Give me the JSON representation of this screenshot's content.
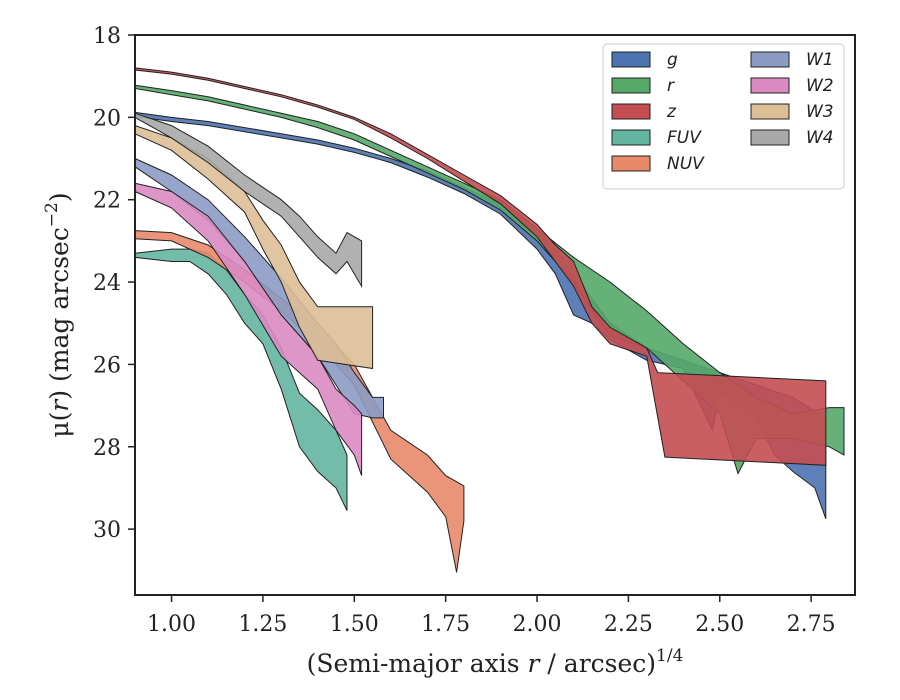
{
  "chart_data": {
    "type": "area",
    "title": "",
    "xlabel": {
      "prefix": "(Semi-major axis ",
      "var": "r",
      "suffix": " / arcsec)",
      "exp": "1/4"
    },
    "ylabel": {
      "prefix": "μ(",
      "var": "r",
      "suffix": ") (mag arcsec",
      "exp": "−2",
      "close": ")"
    },
    "xlim": [
      0.9,
      2.87
    ],
    "ylim": [
      31.6,
      18
    ],
    "y_inverted": true,
    "grid": false,
    "legend_position": "top-right",
    "legend_columns": 2,
    "xticks": [
      {
        "v": 1.0,
        "label": "1.00"
      },
      {
        "v": 1.25,
        "label": "1.25"
      },
      {
        "v": 1.5,
        "label": "1.50"
      },
      {
        "v": 1.75,
        "label": "1.75"
      },
      {
        "v": 2.0,
        "label": "2.00"
      },
      {
        "v": 2.25,
        "label": "2.25"
      },
      {
        "v": 2.5,
        "label": "2.50"
      },
      {
        "v": 2.75,
        "label": "2.75"
      }
    ],
    "yticks": [
      {
        "v": 18,
        "label": "18"
      },
      {
        "v": 20,
        "label": "20"
      },
      {
        "v": 22,
        "label": "22"
      },
      {
        "v": 24,
        "label": "24"
      },
      {
        "v": 26,
        "label": "26"
      },
      {
        "v": 28,
        "label": "28"
      },
      {
        "v": 30,
        "label": "30"
      }
    ],
    "series": [
      {
        "name": "g",
        "color": "#4C72B0",
        "upper": [
          [
            0.9,
            19.88
          ],
          [
            1.0,
            20.0
          ],
          [
            1.1,
            20.1
          ],
          [
            1.2,
            20.25
          ],
          [
            1.3,
            20.4
          ],
          [
            1.4,
            20.55
          ],
          [
            1.5,
            20.75
          ],
          [
            1.6,
            21.0
          ],
          [
            1.7,
            21.3
          ],
          [
            1.8,
            21.7
          ],
          [
            1.9,
            22.1
          ],
          [
            2.0,
            22.8
          ],
          [
            2.05,
            23.2
          ],
          [
            2.1,
            23.8
          ],
          [
            2.15,
            24.4
          ],
          [
            2.2,
            25.0
          ],
          [
            2.3,
            25.6
          ],
          [
            2.4,
            25.9
          ],
          [
            2.5,
            26.2
          ],
          [
            2.6,
            26.5
          ],
          [
            2.7,
            26.8
          ],
          [
            2.79,
            27.3
          ]
        ],
        "lower": [
          [
            0.9,
            19.98
          ],
          [
            1.0,
            20.1
          ],
          [
            1.1,
            20.2
          ],
          [
            1.2,
            20.35
          ],
          [
            1.3,
            20.5
          ],
          [
            1.4,
            20.65
          ],
          [
            1.5,
            20.85
          ],
          [
            1.6,
            21.1
          ],
          [
            1.7,
            21.45
          ],
          [
            1.8,
            21.85
          ],
          [
            1.9,
            22.35
          ],
          [
            2.0,
            23.2
          ],
          [
            2.05,
            23.8
          ],
          [
            2.1,
            24.8
          ],
          [
            2.15,
            25.0
          ],
          [
            2.2,
            25.4
          ],
          [
            2.3,
            25.9
          ],
          [
            2.4,
            26.1
          ],
          [
            2.48,
            27.6
          ],
          [
            2.5,
            26.7
          ],
          [
            2.6,
            27.3
          ],
          [
            2.65,
            28.2
          ],
          [
            2.7,
            28.6
          ],
          [
            2.76,
            29.0
          ],
          [
            2.79,
            29.75
          ]
        ]
      },
      {
        "name": "r",
        "color": "#55A868",
        "upper": [
          [
            0.9,
            19.22
          ],
          [
            1.0,
            19.35
          ],
          [
            1.1,
            19.5
          ],
          [
            1.2,
            19.7
          ],
          [
            1.3,
            19.9
          ],
          [
            1.4,
            20.1
          ],
          [
            1.5,
            20.4
          ],
          [
            1.6,
            20.8
          ],
          [
            1.7,
            21.2
          ],
          [
            1.8,
            21.6
          ],
          [
            1.9,
            22.0
          ],
          [
            2.0,
            22.7
          ],
          [
            2.1,
            23.4
          ],
          [
            2.2,
            24.0
          ],
          [
            2.3,
            24.7
          ],
          [
            2.4,
            25.5
          ],
          [
            2.5,
            26.2
          ],
          [
            2.6,
            26.8
          ],
          [
            2.7,
            27.2
          ],
          [
            2.8,
            27.05
          ],
          [
            2.84,
            27.05
          ]
        ],
        "lower": [
          [
            0.9,
            19.3
          ],
          [
            1.0,
            19.45
          ],
          [
            1.1,
            19.6
          ],
          [
            1.2,
            19.8
          ],
          [
            1.3,
            20.0
          ],
          [
            1.4,
            20.25
          ],
          [
            1.5,
            20.55
          ],
          [
            1.6,
            20.95
          ],
          [
            1.7,
            21.35
          ],
          [
            1.8,
            21.75
          ],
          [
            1.9,
            22.25
          ],
          [
            2.0,
            23.0
          ],
          [
            2.1,
            24.0
          ],
          [
            2.2,
            25.3
          ],
          [
            2.3,
            25.6
          ],
          [
            2.4,
            26.4
          ],
          [
            2.5,
            27.2
          ],
          [
            2.55,
            28.65
          ],
          [
            2.6,
            27.8
          ],
          [
            2.7,
            27.8
          ],
          [
            2.8,
            28.0
          ],
          [
            2.84,
            28.2
          ]
        ]
      },
      {
        "name": "z",
        "color": "#C44E52",
        "upper": [
          [
            0.9,
            18.8
          ],
          [
            1.0,
            18.9
          ],
          [
            1.1,
            19.05
          ],
          [
            1.2,
            19.25
          ],
          [
            1.3,
            19.45
          ],
          [
            1.4,
            19.7
          ],
          [
            1.5,
            20.0
          ],
          [
            1.6,
            20.4
          ],
          [
            1.7,
            20.9
          ],
          [
            1.8,
            21.4
          ],
          [
            1.9,
            21.9
          ],
          [
            2.0,
            22.6
          ],
          [
            2.05,
            23.1
          ],
          [
            2.1,
            23.5
          ],
          [
            2.15,
            24.6
          ],
          [
            2.2,
            25.1
          ],
          [
            2.3,
            25.6
          ],
          [
            2.33,
            26.2
          ],
          [
            2.79,
            26.4
          ]
        ],
        "lower": [
          [
            0.9,
            18.85
          ],
          [
            1.0,
            18.95
          ],
          [
            1.1,
            19.1
          ],
          [
            1.2,
            19.3
          ],
          [
            1.3,
            19.5
          ],
          [
            1.4,
            19.75
          ],
          [
            1.5,
            20.05
          ],
          [
            1.6,
            20.5
          ],
          [
            1.7,
            21.0
          ],
          [
            1.8,
            21.55
          ],
          [
            1.9,
            22.1
          ],
          [
            2.0,
            22.9
          ],
          [
            2.05,
            23.5
          ],
          [
            2.1,
            24.1
          ],
          [
            2.15,
            25.0
          ],
          [
            2.2,
            25.5
          ],
          [
            2.3,
            25.8
          ],
          [
            2.35,
            28.25
          ],
          [
            2.79,
            28.45
          ]
        ]
      },
      {
        "name": "FUV",
        "color": "#64B5A0",
        "upper": [
          [
            0.9,
            23.3
          ],
          [
            1.0,
            23.2
          ],
          [
            1.05,
            23.2
          ],
          [
            1.1,
            23.3
          ],
          [
            1.15,
            23.7
          ],
          [
            1.2,
            24.3
          ],
          [
            1.25,
            24.8
          ],
          [
            1.3,
            25.6
          ],
          [
            1.35,
            26.7
          ],
          [
            1.4,
            27.1
          ],
          [
            1.45,
            27.6
          ],
          [
            1.48,
            28.2
          ]
        ],
        "lower": [
          [
            0.9,
            23.4
          ],
          [
            1.0,
            23.5
          ],
          [
            1.05,
            23.5
          ],
          [
            1.1,
            23.8
          ],
          [
            1.15,
            24.3
          ],
          [
            1.2,
            25.0
          ],
          [
            1.25,
            25.5
          ],
          [
            1.3,
            26.6
          ],
          [
            1.35,
            28.0
          ],
          [
            1.4,
            28.6
          ],
          [
            1.45,
            29.0
          ],
          [
            1.48,
            29.55
          ]
        ]
      },
      {
        "name": "NUV",
        "color": "#E8896A",
        "upper": [
          [
            0.9,
            22.75
          ],
          [
            1.0,
            22.8
          ],
          [
            1.1,
            23.1
          ],
          [
            1.2,
            23.7
          ],
          [
            1.3,
            24.4
          ],
          [
            1.4,
            25.1
          ],
          [
            1.5,
            26.0
          ],
          [
            1.6,
            27.6
          ],
          [
            1.7,
            28.2
          ],
          [
            1.75,
            28.7
          ],
          [
            1.8,
            28.95
          ]
        ],
        "lower": [
          [
            0.9,
            22.95
          ],
          [
            1.0,
            23.0
          ],
          [
            1.1,
            23.4
          ],
          [
            1.2,
            24.0
          ],
          [
            1.3,
            24.7
          ],
          [
            1.4,
            25.5
          ],
          [
            1.5,
            26.5
          ],
          [
            1.6,
            28.3
          ],
          [
            1.7,
            29.1
          ],
          [
            1.75,
            29.7
          ],
          [
            1.78,
            31.05
          ],
          [
            1.8,
            29.8
          ]
        ]
      },
      {
        "name": "W1",
        "color": "#8C9BC4",
        "upper": [
          [
            0.9,
            21.0
          ],
          [
            1.0,
            21.4
          ],
          [
            1.1,
            22.0
          ],
          [
            1.2,
            22.9
          ],
          [
            1.3,
            23.9
          ],
          [
            1.4,
            25.0
          ],
          [
            1.45,
            25.5
          ],
          [
            1.5,
            26.2
          ],
          [
            1.55,
            26.8
          ],
          [
            1.58,
            26.8
          ]
        ],
        "lower": [
          [
            0.9,
            21.2
          ],
          [
            1.0,
            21.8
          ],
          [
            1.1,
            22.5
          ],
          [
            1.2,
            23.5
          ],
          [
            1.3,
            24.8
          ],
          [
            1.4,
            25.8
          ],
          [
            1.45,
            26.5
          ],
          [
            1.5,
            27.2
          ],
          [
            1.55,
            27.3
          ],
          [
            1.58,
            27.3
          ]
        ]
      },
      {
        "name": "W2",
        "color": "#DA8BC3",
        "upper": [
          [
            0.9,
            21.6
          ],
          [
            1.0,
            21.8
          ],
          [
            1.1,
            22.4
          ],
          [
            1.2,
            23.5
          ],
          [
            1.3,
            24.8
          ],
          [
            1.4,
            25.8
          ],
          [
            1.45,
            26.6
          ],
          [
            1.5,
            27.0
          ],
          [
            1.52,
            27.2
          ]
        ],
        "lower": [
          [
            0.9,
            21.8
          ],
          [
            1.0,
            22.2
          ],
          [
            1.1,
            23.0
          ],
          [
            1.2,
            24.3
          ],
          [
            1.3,
            25.8
          ],
          [
            1.4,
            26.6
          ],
          [
            1.45,
            27.6
          ],
          [
            1.5,
            28.2
          ],
          [
            1.52,
            28.7
          ]
        ]
      },
      {
        "name": "W3",
        "color": "#DDBF96",
        "upper": [
          [
            0.9,
            20.2
          ],
          [
            1.0,
            20.5
          ],
          [
            1.1,
            21.0
          ],
          [
            1.2,
            21.8
          ],
          [
            1.25,
            22.5
          ],
          [
            1.3,
            23.1
          ],
          [
            1.35,
            24.0
          ],
          [
            1.4,
            24.6
          ],
          [
            1.55,
            24.6
          ]
        ],
        "lower": [
          [
            0.9,
            20.4
          ],
          [
            1.0,
            20.8
          ],
          [
            1.1,
            21.5
          ],
          [
            1.2,
            22.3
          ],
          [
            1.25,
            23.2
          ],
          [
            1.3,
            24.0
          ],
          [
            1.35,
            25.1
          ],
          [
            1.4,
            25.9
          ],
          [
            1.55,
            26.1
          ]
        ]
      },
      {
        "name": "W4",
        "color": "#A9A9A9",
        "upper": [
          [
            0.9,
            19.9
          ],
          [
            1.0,
            20.2
          ],
          [
            1.1,
            20.7
          ],
          [
            1.2,
            21.4
          ],
          [
            1.3,
            22.0
          ],
          [
            1.35,
            22.4
          ],
          [
            1.4,
            22.9
          ],
          [
            1.45,
            23.3
          ],
          [
            1.48,
            22.8
          ],
          [
            1.52,
            23.0
          ]
        ],
        "lower": [
          [
            0.9,
            20.0
          ],
          [
            1.0,
            20.5
          ],
          [
            1.1,
            21.1
          ],
          [
            1.2,
            21.8
          ],
          [
            1.3,
            22.4
          ],
          [
            1.35,
            22.9
          ],
          [
            1.4,
            23.4
          ],
          [
            1.45,
            23.8
          ],
          [
            1.48,
            23.5
          ],
          [
            1.52,
            24.1
          ]
        ]
      }
    ]
  }
}
